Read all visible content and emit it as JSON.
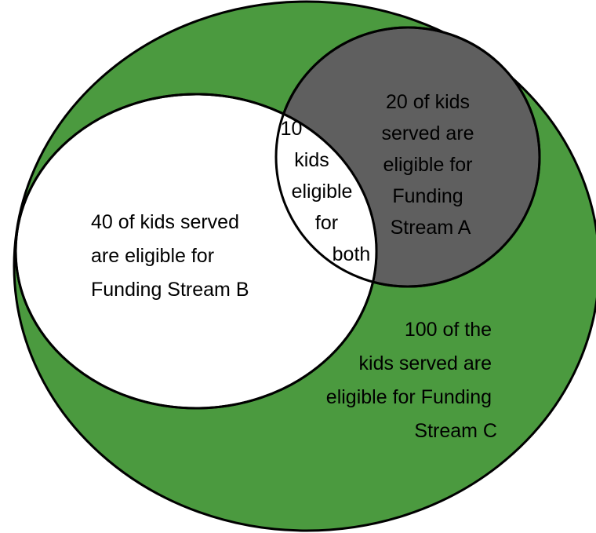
{
  "colors": {
    "stream_c_fill": "#4b9a3f",
    "stream_a_fill": "#5f5f5f",
    "stream_b_fill": "#ffffff",
    "overlap_fill": "#ffffff",
    "outline": "#000000"
  },
  "regions": {
    "stream_c": {
      "lines": [
        "100 of the",
        "kids served are",
        "eligible for Funding",
        "Stream C"
      ]
    },
    "stream_a": {
      "lines": [
        "20 of kids",
        "served are",
        "eligible for",
        "Funding",
        "Stream A"
      ]
    },
    "stream_b": {
      "lines": [
        "40 of kids served",
        "are eligible for",
        "Funding Stream B"
      ]
    },
    "overlap": {
      "lines": [
        "10",
        "kids",
        "eligible",
        "for",
        "both"
      ]
    }
  }
}
